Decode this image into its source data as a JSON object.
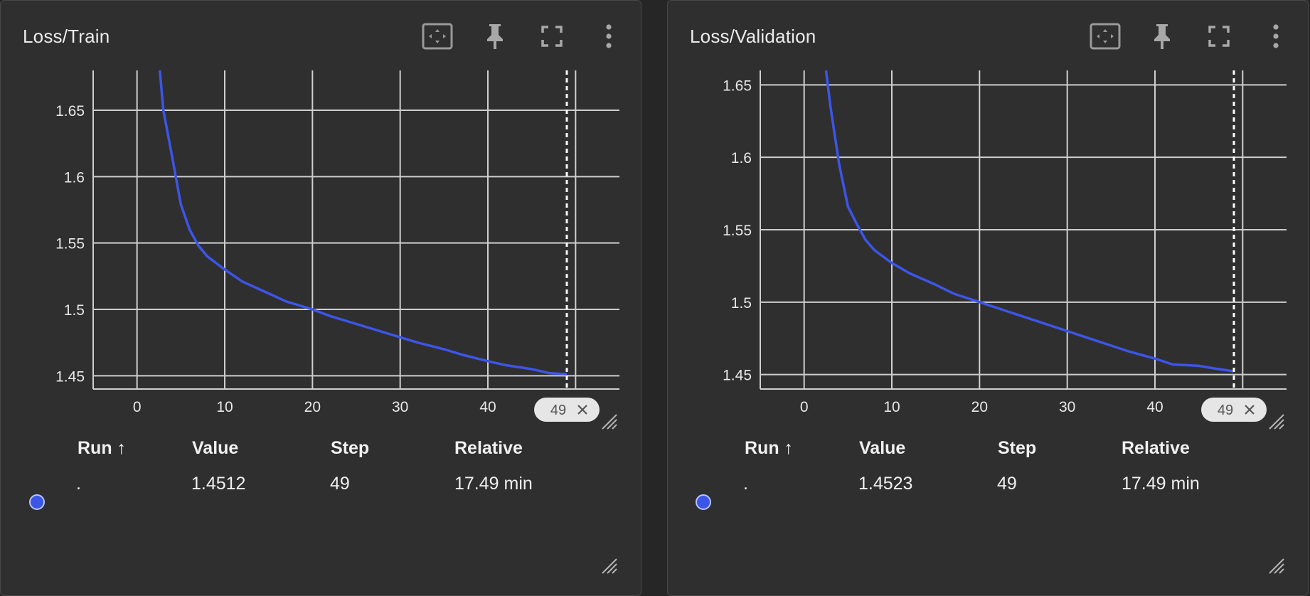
{
  "colors": {
    "background": "#262626",
    "card": "#2f2f2f",
    "grid": "#cfcfcf",
    "series": "#3d55e8",
    "text": "#ececec",
    "marker_chip": "#e6e6e6"
  },
  "icons": [
    "fit-domain-icon",
    "pin-icon",
    "fullscreen-icon",
    "more-vert-icon",
    "resize-grip-icon",
    "chip-close-icon"
  ],
  "table_headers": {
    "run": "Run ↑",
    "value": "Value",
    "step": "Step",
    "relative": "Relative"
  },
  "cards": [
    {
      "title": "Loss/Train",
      "marker_step": "49",
      "row": {
        "run": ".",
        "value": "1.4512",
        "step": "49",
        "relative": "17.49 min"
      }
    },
    {
      "title": "Loss/Validation",
      "marker_step": "49",
      "row": {
        "run": ".",
        "value": "1.4523",
        "step": "49",
        "relative": "17.49 min"
      }
    }
  ],
  "chart_data": [
    {
      "type": "line",
      "title": "Loss/Train",
      "xlim": [
        -5,
        55
      ],
      "ylim": [
        1.44,
        1.68
      ],
      "x_ticks": [
        0,
        10,
        20,
        30,
        40,
        50
      ],
      "x_tick_labels": [
        "0",
        "10",
        "20",
        "30",
        "40",
        ""
      ],
      "y_ticks": [
        1.45,
        1.5,
        1.55,
        1.6,
        1.65
      ],
      "y_tick_labels": [
        "1.45",
        "1.5",
        "1.55",
        "1.6",
        "1.65"
      ],
      "grid": true,
      "marker_x": 49,
      "series": [
        {
          "color": "#3d55e8",
          "x": [
            2.6,
            3,
            4,
            5,
            6,
            7,
            8,
            10,
            12,
            15,
            17,
            20,
            22,
            25,
            27,
            30,
            32,
            35,
            37,
            40,
            42,
            45,
            47,
            49
          ],
          "y": [
            1.68,
            1.65,
            1.615,
            1.579,
            1.56,
            1.548,
            1.54,
            1.53,
            1.521,
            1.512,
            1.506,
            1.5,
            1.495,
            1.489,
            1.485,
            1.479,
            1.475,
            1.47,
            1.466,
            1.461,
            1.458,
            1.455,
            1.452,
            1.4512
          ]
        }
      ]
    },
    {
      "type": "line",
      "title": "Loss/Validation",
      "xlim": [
        -5,
        55
      ],
      "ylim": [
        1.44,
        1.66
      ],
      "x_ticks": [
        0,
        10,
        20,
        30,
        40,
        50
      ],
      "x_tick_labels": [
        "0",
        "10",
        "20",
        "30",
        "40",
        ""
      ],
      "y_ticks": [
        1.45,
        1.5,
        1.55,
        1.6,
        1.65
      ],
      "y_tick_labels": [
        "1.45",
        "1.5",
        "1.55",
        "1.6",
        "1.65"
      ],
      "grid": true,
      "marker_x": 49,
      "series": [
        {
          "color": "#3d55e8",
          "x": [
            2.5,
            3,
            4,
            5,
            6,
            7,
            8,
            10,
            12,
            15,
            17,
            20,
            22,
            25,
            27,
            30,
            32,
            35,
            37,
            40,
            42,
            45,
            47,
            49
          ],
          "y": [
            1.66,
            1.635,
            1.595,
            1.566,
            1.554,
            1.543,
            1.536,
            1.527,
            1.52,
            1.512,
            1.506,
            1.5,
            1.496,
            1.49,
            1.486,
            1.48,
            1.476,
            1.47,
            1.466,
            1.461,
            1.457,
            1.456,
            1.454,
            1.4523
          ]
        }
      ]
    }
  ]
}
